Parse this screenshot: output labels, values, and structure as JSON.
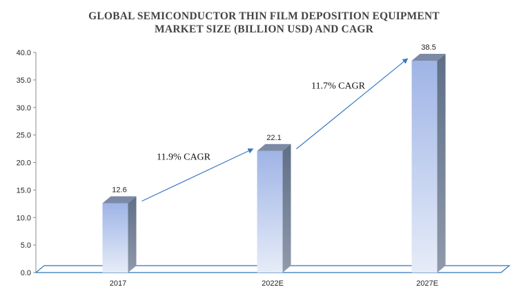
{
  "chart_data": {
    "type": "bar",
    "title_lines": [
      "GLOBAL SEMICONDUCTOR THIN FILM DEPOSITION EQUIPMENT",
      "MARKET SIZE  (BILLION USD) AND CAGR"
    ],
    "categories": [
      "2017",
      "2022E",
      "2027E"
    ],
    "values": [
      12.6,
      22.1,
      38.5
    ],
    "data_labels": [
      "12.6",
      "22.1",
      "38.5"
    ],
    "ylim": [
      0,
      40
    ],
    "yticks": [
      "0.0",
      "5.0",
      "10.0",
      "15.0",
      "20.0",
      "25.0",
      "30.0",
      "35.0",
      "40.0"
    ],
    "xlabel": "",
    "ylabel": "",
    "grid": false,
    "style": "3d-column",
    "annotations": [
      {
        "text": "11.9% CAGR",
        "from": "2017",
        "to": "2022E"
      },
      {
        "text": "11.7% CAGR",
        "from": "2022E",
        "to": "2027E"
      }
    ],
    "colors": {
      "bar_top": "#9fb4e6",
      "bar_bottom": "#e6ecf8",
      "bar_side": "#6b7a8f",
      "floor": "#2e75b6",
      "arrow": "#3a78c2"
    }
  }
}
